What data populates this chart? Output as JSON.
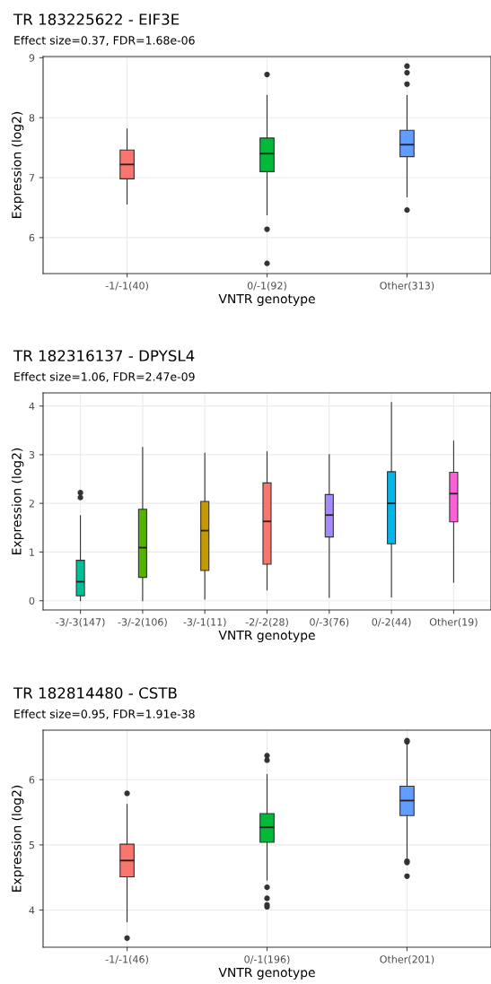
{
  "chart_data": [
    {
      "type": "box",
      "title": "TR 183225622 - EIF3E",
      "subtitle": "Effect size=0.37, FDR=1.68e-06",
      "xlabel": "VNTR genotype",
      "ylabel": "Expression (log2)",
      "categories": [
        "-1/-1(40)",
        "0/-1(92)",
        "Other(313)"
      ],
      "colors": [
        "#f8766d",
        "#00ba38",
        "#619cff"
      ],
      "boxes": [
        {
          "low": 6.56,
          "q1": 6.98,
          "median": 7.22,
          "q3": 7.46,
          "high": 7.81
        },
        {
          "low": 6.38,
          "q1": 7.1,
          "median": 7.4,
          "q3": 7.66,
          "high": 8.37,
          "outliers": [
            6.14,
            5.57,
            8.72
          ]
        },
        {
          "low": 6.68,
          "q1": 7.35,
          "median": 7.55,
          "q3": 7.79,
          "high": 8.37,
          "outliers": [
            6.46,
            8.56,
            8.75,
            8.86
          ]
        }
      ],
      "ylim": [
        5.4,
        9.02
      ],
      "yticks": [
        6,
        7,
        8,
        9
      ],
      "grid": true
    },
    {
      "type": "box",
      "title": "TR 182316137 - DPYSL4",
      "subtitle": "Effect size=1.06, FDR=2.47e-09",
      "xlabel": "VNTR genotype",
      "ylabel": "Expression (log2)",
      "categories": [
        "-3/-3(147)",
        "-3/-2(106)",
        "-3/-1(11)",
        "-2/-2(28)",
        "0/-3(76)",
        "0/-2(44)",
        "Other(19)"
      ],
      "colors": [
        "#00c094",
        "#53b400",
        "#c49a00",
        "#f8766d",
        "#a58aff",
        "#00b6eb",
        "#fb61d7"
      ],
      "boxes": [
        {
          "low": 0.0,
          "q1": 0.1,
          "median": 0.39,
          "q3": 0.83,
          "high": 1.75,
          "outliers": [
            2.12,
            2.22
          ]
        },
        {
          "low": 0.0,
          "q1": 0.48,
          "median": 1.09,
          "q3": 1.88,
          "high": 3.15
        },
        {
          "low": 0.03,
          "q1": 0.62,
          "median": 1.44,
          "q3": 2.04,
          "high": 3.03
        },
        {
          "low": 0.22,
          "q1": 0.75,
          "median": 1.63,
          "q3": 2.42,
          "high": 3.06
        },
        {
          "low": 0.07,
          "q1": 1.31,
          "median": 1.76,
          "q3": 2.18,
          "high": 3.0
        },
        {
          "low": 0.08,
          "q1": 1.17,
          "median": 2.0,
          "q3": 2.65,
          "high": 4.07
        },
        {
          "low": 0.38,
          "q1": 1.62,
          "median": 2.2,
          "q3": 2.64,
          "high": 3.28
        }
      ],
      "ylim": [
        -0.19,
        4.27
      ],
      "yticks": [
        0,
        1,
        2,
        3,
        4
      ],
      "grid": true
    },
    {
      "type": "box",
      "title": "TR 182814480 - CSTB",
      "subtitle": "Effect size=0.95, FDR=1.91e-38",
      "xlabel": "VNTR genotype",
      "ylabel": "Expression (log2)",
      "categories": [
        "-1/-1(46)",
        "0/-1(196)",
        "Other(201)"
      ],
      "colors": [
        "#f8766d",
        "#00ba38",
        "#619cff"
      ],
      "boxes": [
        {
          "low": 3.82,
          "q1": 4.51,
          "median": 4.76,
          "q3": 5.01,
          "high": 5.62,
          "outliers": [
            3.57,
            5.79
          ]
        },
        {
          "low": 4.46,
          "q1": 5.04,
          "median": 5.27,
          "q3": 5.48,
          "high": 6.08,
          "outliers": [
            4.05,
            4.08,
            4.18,
            4.35,
            6.3,
            6.37
          ]
        },
        {
          "low": 4.79,
          "q1": 5.45,
          "median": 5.68,
          "q3": 5.9,
          "high": 6.55,
          "outliers": [
            4.52,
            4.73,
            4.75,
            6.58,
            6.6
          ]
        }
      ],
      "ylim": [
        3.43,
        6.76
      ],
      "yticks": [
        4,
        5,
        6
      ],
      "grid": true
    }
  ]
}
